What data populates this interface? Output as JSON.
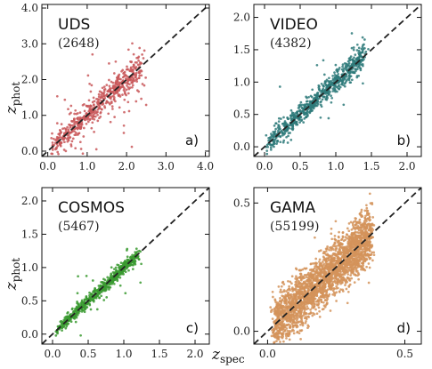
{
  "figure": {
    "xlabel": "z",
    "xlabel_sub": "spec",
    "ylabel": "z",
    "ylabel_sub": "phot"
  },
  "chart_data": [
    {
      "type": "scatter",
      "field": "UDS",
      "count": "(2648)",
      "panel": "a)",
      "color": "#c9585a",
      "xlim": [
        -0.15,
        4.1
      ],
      "ylim": [
        -0.15,
        4.1
      ],
      "xticks": [
        0.0,
        1.0,
        2.0,
        3.0,
        4.0
      ],
      "yticks": [
        0.0,
        1.0,
        2.0,
        3.0,
        4.0
      ],
      "tick_format": "0.0",
      "one_to_one_line": true,
      "n_points": 600,
      "core_range": [
        0.1,
        2.4
      ],
      "core_scatter": 0.12,
      "outlier_fraction": 0.18
    },
    {
      "type": "scatter",
      "field": "VIDEO",
      "count": "(4382)",
      "panel": "b)",
      "color": "#2e7a7a",
      "xlim": [
        -0.15,
        2.2
      ],
      "ylim": [
        -0.15,
        2.2
      ],
      "xticks": [
        0.0,
        0.5,
        1.0,
        1.5,
        2.0
      ],
      "yticks": [
        0.0,
        0.5,
        1.0,
        1.5,
        2.0
      ],
      "tick_format": "0.0",
      "one_to_one_line": true,
      "n_points": 750,
      "core_range": [
        0.05,
        1.4
      ],
      "core_scatter": 0.07,
      "outlier_fraction": 0.06
    },
    {
      "type": "scatter",
      "field": "COSMOS",
      "count": "(5467)",
      "panel": "c)",
      "color": "#3a9a30",
      "xlim": [
        -0.15,
        2.2
      ],
      "ylim": [
        -0.15,
        2.2
      ],
      "xticks": [
        0.0,
        0.5,
        1.0,
        1.5,
        2.0
      ],
      "yticks": [
        0.0,
        0.5,
        1.0,
        1.5,
        2.0
      ],
      "tick_format": "0.0",
      "one_to_one_line": true,
      "n_points": 650,
      "core_range": [
        0.05,
        1.2
      ],
      "core_scatter": 0.04,
      "outlier_fraction": 0.04
    },
    {
      "type": "scatter",
      "field": "GAMA",
      "count": "(55199)",
      "panel": "d)",
      "color": "#d4935a",
      "xlim": [
        -0.05,
        0.56
      ],
      "ylim": [
        -0.05,
        0.56
      ],
      "xticks": [
        0.0,
        0.5
      ],
      "yticks": [
        0.0,
        0.5
      ],
      "tick_format": "0.0",
      "one_to_one_line": true,
      "n_points": 2600,
      "core_range": [
        0.02,
        0.38
      ],
      "core_scatter": 0.05,
      "outlier_fraction": 0.0
    }
  ]
}
